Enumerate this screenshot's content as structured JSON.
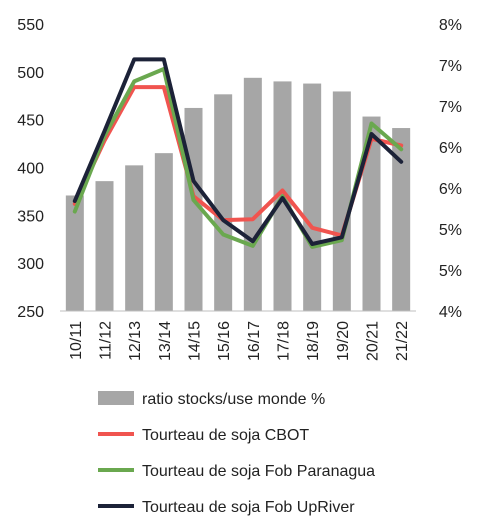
{
  "chart_data": {
    "type": "bar",
    "categories": [
      "10/11",
      "11/12",
      "12/13",
      "13/14",
      "14/15",
      "15/16",
      "16/17",
      "17/18",
      "18/19",
      "19/20",
      "20/21",
      "21/22"
    ],
    "y_left": {
      "ylim": [
        250,
        550
      ],
      "ticks": [
        "250",
        "300",
        "350",
        "400",
        "450",
        "500",
        "550"
      ]
    },
    "y_right": {
      "ylim": [
        4,
        8
      ],
      "ticks": [
        "4%",
        "5%",
        "5%",
        "6%",
        "6%",
        "7%",
        "7%",
        "8%"
      ],
      "unit": "%"
    },
    "series": [
      {
        "name": "ratio stocks/use monde %",
        "type": "bar",
        "axis": "right",
        "color": "#a6a6a6",
        "values": [
          5.61,
          5.81,
          6.03,
          6.2,
          6.83,
          7.02,
          7.25,
          7.2,
          7.17,
          7.06,
          6.71,
          6.55
        ]
      },
      {
        "name": "Tourteau de soja CBOT",
        "type": "line",
        "axis": "left",
        "color": "#f0544f",
        "values": [
          362,
          428,
          484,
          484,
          370,
          345,
          346,
          376,
          337,
          329,
          430,
          423
        ]
      },
      {
        "name": "Tourteau de soja Fob Paranagua",
        "type": "line",
        "axis": "left",
        "color": "#6aa84f",
        "values": [
          354,
          433,
          490,
          503,
          366,
          330,
          318,
          370,
          317,
          324,
          446,
          419
        ]
      },
      {
        "name": "Tourteau de soja Fob UpRiver",
        "type": "line",
        "axis": "left",
        "color": "#1c2238",
        "values": [
          365,
          438,
          513,
          513,
          386,
          345,
          323,
          368,
          320,
          327,
          435,
          406
        ]
      }
    ],
    "legend_position": "bottom",
    "grid": false
  }
}
